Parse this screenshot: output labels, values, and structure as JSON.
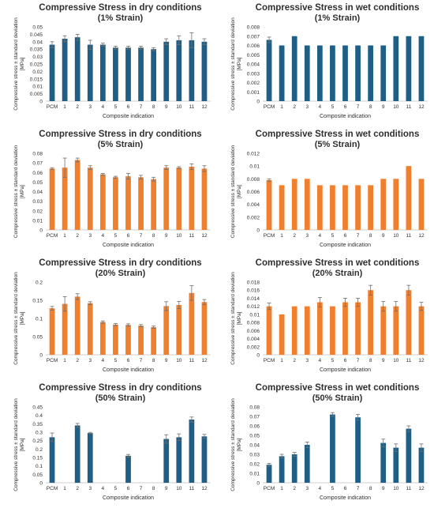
{
  "colors": {
    "dry_50": "#1f5f86",
    "orange": "#f07f2e",
    "teal": "#1f5f86",
    "text": "#2f2f2f",
    "error": "#6f6f6f"
  },
  "chart_data": [
    {
      "type": "bar",
      "title": "Compressive Stress in dry conditions",
      "subtitle": "(1% Strain)",
      "xlabel": "Composite indication",
      "ylabel": "Compressive stress ± standard deviation [MPa]",
      "categories": [
        "PCM",
        "1",
        "2",
        "3",
        "4",
        "5",
        "6",
        "7",
        "8",
        "9",
        "10",
        "11",
        "12"
      ],
      "values": [
        0.038,
        0.042,
        0.043,
        0.038,
        0.038,
        0.036,
        0.036,
        0.036,
        0.035,
        0.04,
        0.041,
        0.041,
        0.04
      ],
      "errors": [
        0.002,
        0.002,
        0.002,
        0.003,
        0.001,
        0.001,
        0.001,
        0.001,
        0.001,
        0.002,
        0.003,
        0.005,
        0.002
      ],
      "yticks": [
        "0",
        "0.005",
        "0.01",
        "0.015",
        "0.02",
        "0.025",
        "0.03",
        "0.035",
        "0.04",
        "0.045",
        "0.05"
      ],
      "ylim": [
        0,
        0.05
      ],
      "color": "#1f5f86"
    },
    {
      "type": "bar",
      "title": "Compressive Stress in wet conditions",
      "subtitle": "(1% Strain)",
      "xlabel": "Composite indication",
      "ylabel": "Compressive stress ± standard deviation [MPa]",
      "categories": [
        "PCM",
        "1",
        "2",
        "3",
        "4",
        "5",
        "6",
        "7",
        "8",
        "9",
        "10",
        "11",
        "12"
      ],
      "values": [
        0.0066,
        0.006,
        0.007,
        0.006,
        0.006,
        0.006,
        0.006,
        0.006,
        0.006,
        0.006,
        0.007,
        0.007,
        0.007
      ],
      "errors": [
        0.0003,
        0,
        0,
        0,
        0,
        0,
        0,
        0,
        0,
        0,
        0,
        0,
        0
      ],
      "yticks": [
        "0",
        "0.001",
        "0.002",
        "0.003",
        "0.004",
        "0.005",
        "0.006",
        "0.007",
        "0.008"
      ],
      "ylim": [
        0,
        0.008
      ],
      "color": "#1f5f86"
    },
    {
      "type": "bar",
      "title": "Compressive Stress in dry conditions",
      "subtitle": "(5% Strain)",
      "xlabel": "Composite indication",
      "ylabel": "Compressive stress ± standard deviation [MPa]",
      "categories": [
        "PCM",
        "1",
        "2",
        "3",
        "4",
        "5",
        "6",
        "7",
        "8",
        "9",
        "10",
        "11",
        "12"
      ],
      "values": [
        0.064,
        0.065,
        0.073,
        0.065,
        0.058,
        0.055,
        0.056,
        0.055,
        0.053,
        0.065,
        0.065,
        0.066,
        0.064
      ],
      "errors": [
        0.001,
        0.01,
        0.002,
        0.002,
        0.001,
        0.001,
        0.003,
        0.002,
        0.002,
        0.002,
        0.001,
        0.003,
        0.003
      ],
      "yticks": [
        "0",
        "0.01",
        "0.02",
        "0.03",
        "0.04",
        "0.05",
        "0.06",
        "0.07",
        "0.08"
      ],
      "ylim": [
        0,
        0.08
      ],
      "color": "#f07f2e"
    },
    {
      "type": "bar",
      "title": "Compressive Stress in wet conditions",
      "subtitle": "(5% Strain)",
      "xlabel": "Composite indication",
      "ylabel": "Compressive stress ± standard deviation [MPa]",
      "categories": [
        "PCM",
        "1",
        "2",
        "3",
        "4",
        "5",
        "6",
        "7",
        "8",
        "9",
        "10",
        "11",
        "12"
      ],
      "values": [
        0.0078,
        0.007,
        0.008,
        0.008,
        0.007,
        0.007,
        0.007,
        0.007,
        0.007,
        0.008,
        0.008,
        0.01,
        0.008
      ],
      "errors": [
        0.0002,
        0,
        0,
        0,
        0,
        0,
        0,
        0,
        0,
        0,
        0,
        0,
        0
      ],
      "yticks": [
        "0",
        "0.002",
        "0.004",
        "0.006",
        "0.008",
        "0.01",
        "0.012"
      ],
      "ylim": [
        0,
        0.012
      ],
      "color": "#f07f2e"
    },
    {
      "type": "bar",
      "title": "Compressive Stress in dry conditions",
      "subtitle": "(20% Strain)",
      "xlabel": "Composite indication",
      "ylabel": "Compressive stress ± standard deviation [MPa]",
      "categories": [
        "PCM",
        "1",
        "2",
        "3",
        "4",
        "5",
        "6",
        "7",
        "8",
        "9",
        "10",
        "11",
        "12"
      ],
      "values": [
        0.128,
        0.14,
        0.16,
        0.142,
        0.09,
        0.083,
        0.082,
        0.08,
        0.076,
        0.134,
        0.137,
        0.17,
        0.145
      ],
      "errors": [
        0.005,
        0.02,
        0.008,
        0.004,
        0.003,
        0.003,
        0.003,
        0.003,
        0.003,
        0.012,
        0.01,
        0.02,
        0.007
      ],
      "yticks": [
        "0",
        "0.05",
        "0.1",
        "0.15",
        "0.2"
      ],
      "ylim": [
        0,
        0.2
      ],
      "color": "#f07f2e"
    },
    {
      "type": "bar",
      "title": "Compressive Stress in wet conditions",
      "subtitle": "(20% Strain)",
      "xlabel": "Composite indication",
      "ylabel": "Compressive stress ± standard deviation [MPa]",
      "categories": [
        "PCM",
        "1",
        "2",
        "3",
        "4",
        "5",
        "6",
        "7",
        "8",
        "9",
        "10",
        "11",
        "12"
      ],
      "values": [
        0.012,
        0.01,
        0.012,
        0.012,
        0.013,
        0.012,
        0.013,
        0.013,
        0.016,
        0.012,
        0.012,
        0.016,
        0.012
      ],
      "errors": [
        0.0008,
        0,
        0,
        0,
        0.0012,
        0,
        0.001,
        0.001,
        0.0012,
        0.0012,
        0.0012,
        0.0012,
        0.001
      ],
      "yticks": [
        "0",
        "0.002",
        "0.004",
        "0.006",
        "0.008",
        "0.01",
        "0.012",
        "0.014",
        "0.016",
        "0.018"
      ],
      "ylim": [
        0,
        0.018
      ],
      "color": "#f07f2e"
    },
    {
      "type": "bar",
      "title": "Compressive Stress in dry conditions",
      "subtitle": "(50% Strain)",
      "xlabel": "Composite indication",
      "ylabel": "Compressive stress ± standard deviation [MPa]",
      "categories": [
        "PCM",
        "1",
        "2",
        "3",
        "4",
        "5",
        "6",
        "7",
        "8",
        "9",
        "10",
        "11",
        "12"
      ],
      "values": [
        0.27,
        0,
        0.34,
        0.295,
        0,
        0,
        0.16,
        0,
        0,
        0.26,
        0.27,
        0.375,
        0.275
      ],
      "errors": [
        0.025,
        0,
        0.012,
        0.004,
        0,
        0,
        0.008,
        0,
        0,
        0.025,
        0.02,
        0.015,
        0.012
      ],
      "yticks": [
        "0",
        "0.05",
        "0.1",
        "0.15",
        "0.2",
        "0.25",
        "0.3",
        "0.35",
        "0.4",
        "0.45"
      ],
      "ylim": [
        0,
        0.45
      ],
      "color": "#1f5f86"
    },
    {
      "type": "bar",
      "title": "Compressive Stress in wet conditions",
      "subtitle": "(50% Strain)",
      "xlabel": "Composite indication",
      "ylabel": "Compressive stress ± standard deviation [MPa]",
      "categories": [
        "PCM",
        "1",
        "2",
        "3",
        "4",
        "5",
        "6",
        "7",
        "8",
        "9",
        "10",
        "11",
        "12"
      ],
      "values": [
        0.019,
        0.028,
        0.03,
        0.04,
        0,
        0.072,
        0,
        0.069,
        0,
        0.042,
        0.037,
        0.057,
        0.037
      ],
      "errors": [
        0.0015,
        0.002,
        0.002,
        0.003,
        0,
        0.002,
        0,
        0.003,
        0,
        0.004,
        0.004,
        0.003,
        0.004
      ],
      "yticks": [
        "0",
        "0.01",
        "0.02",
        "0.03",
        "0.04",
        "0.05",
        "0.06",
        "0.07",
        "0.08"
      ],
      "ylim": [
        0,
        0.08
      ],
      "color": "#1f5f86"
    }
  ]
}
